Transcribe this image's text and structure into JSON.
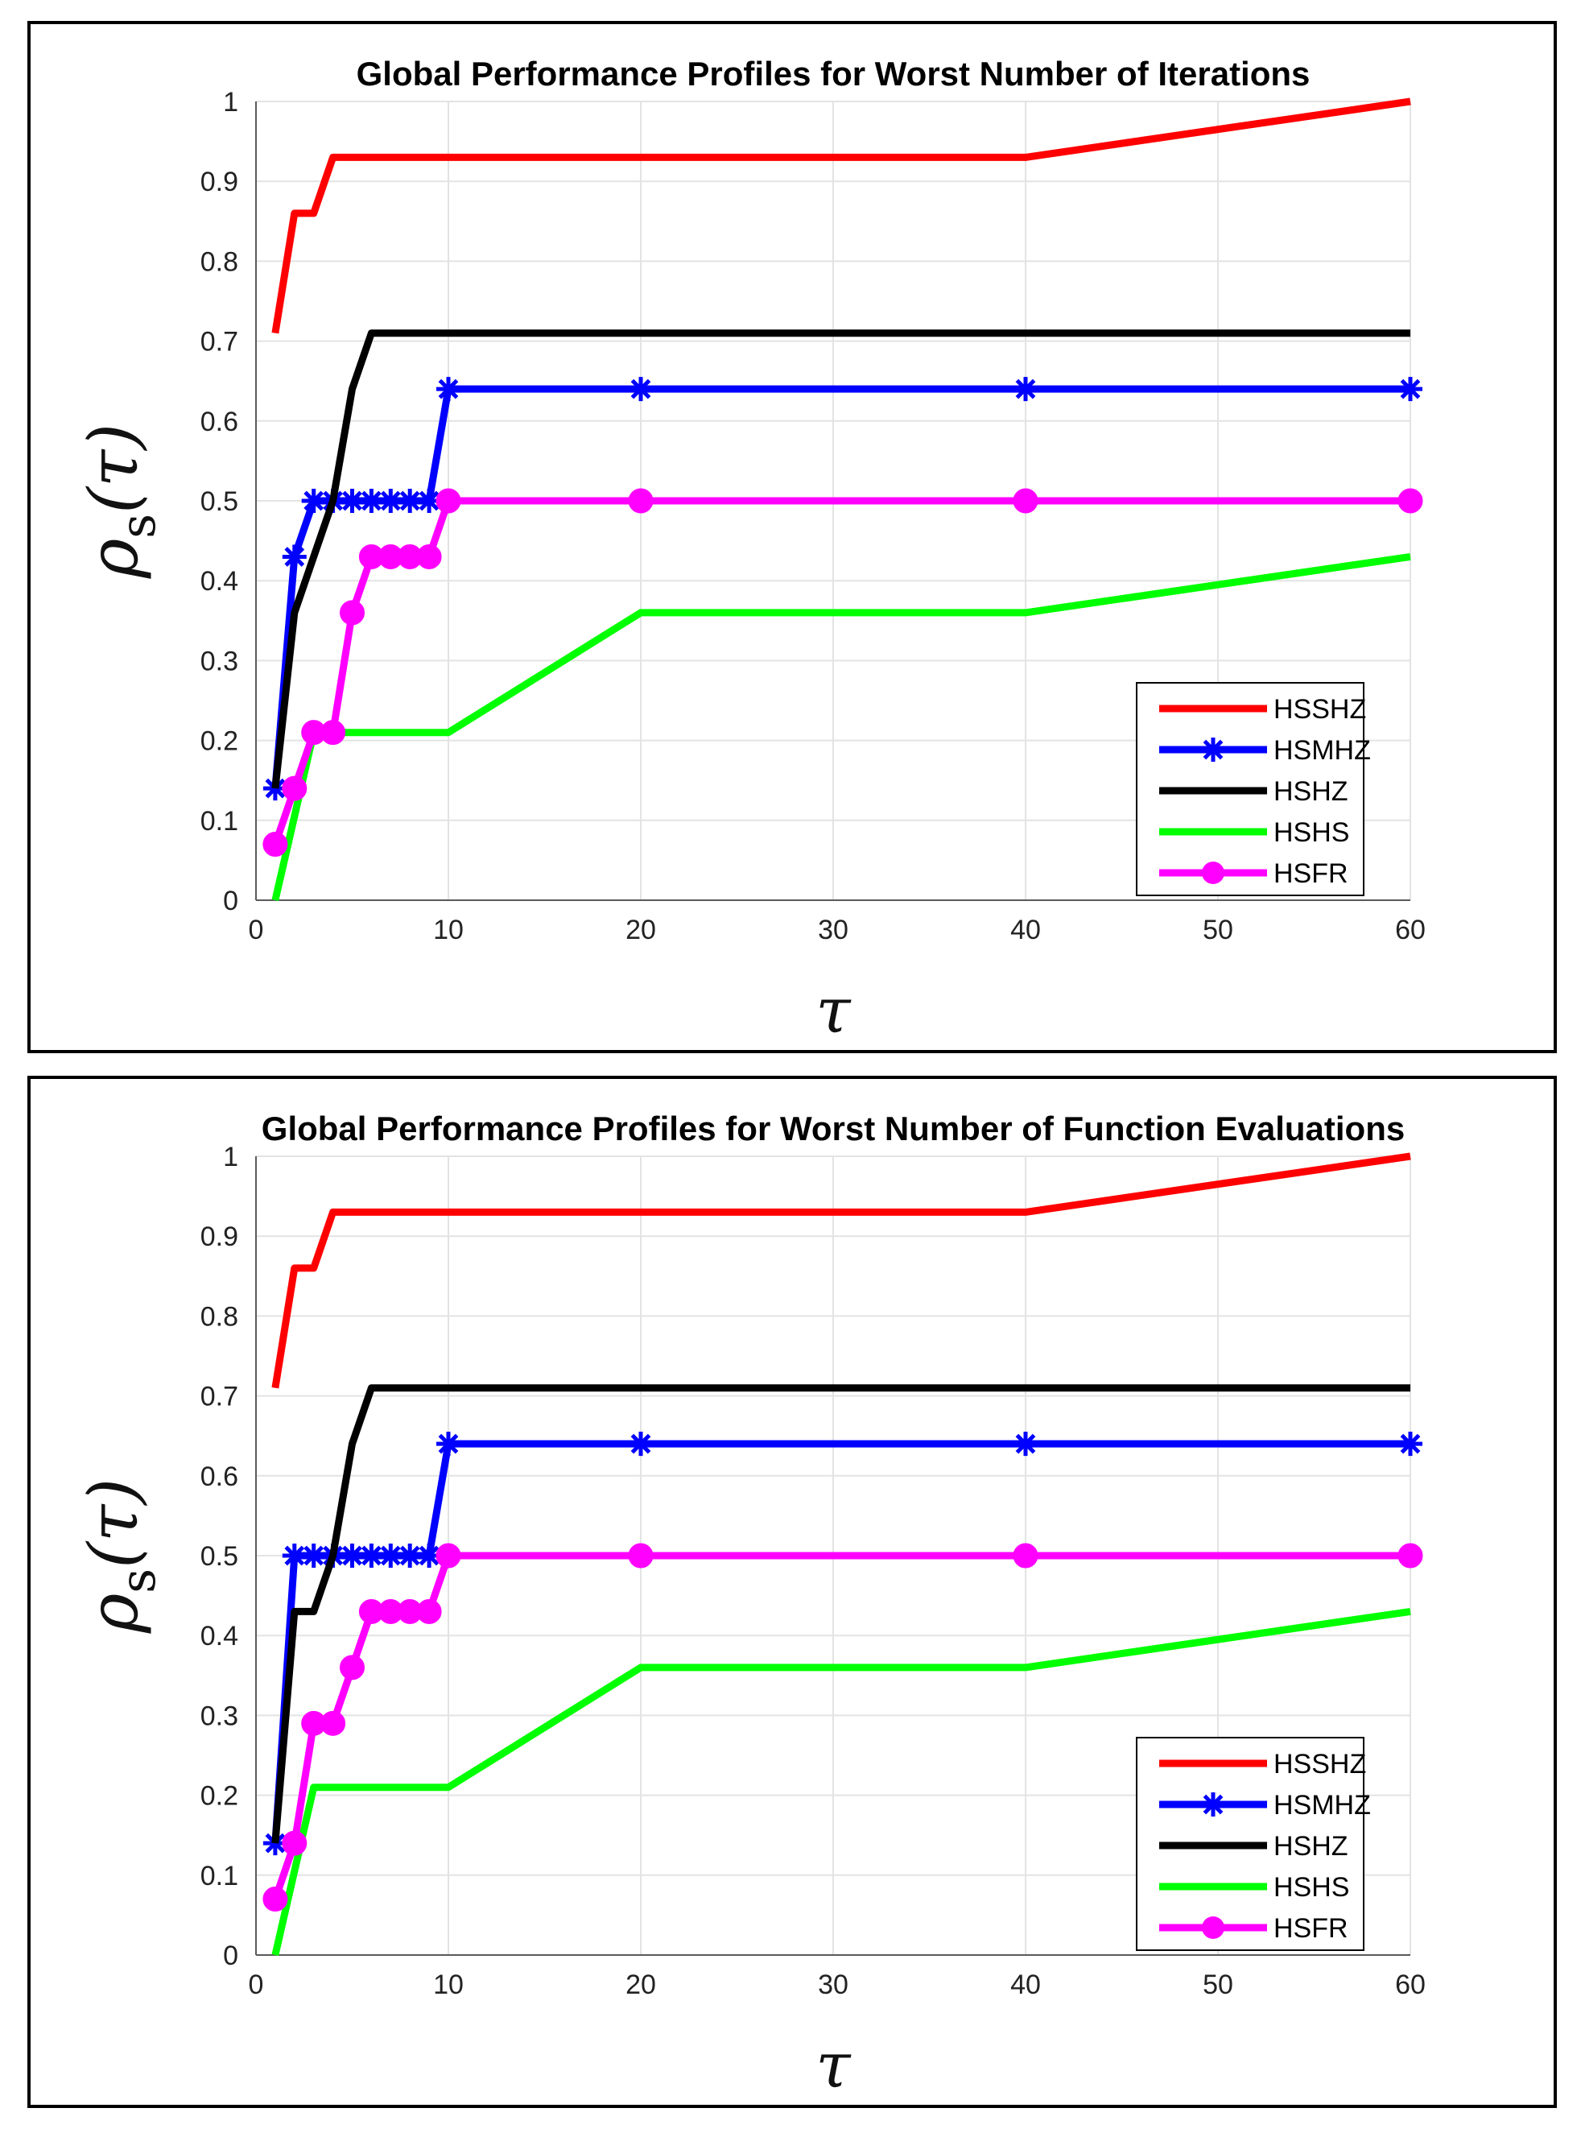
{
  "chart_data": [
    {
      "type": "line",
      "title": "Global Performance Profiles for Worst Number of Iterations",
      "xlabel": "τ",
      "ylabel": "ρ",
      "ylabel_subscript": "s",
      "ylabel_arg": "(τ)",
      "xlim": [
        0,
        60
      ],
      "ylim": [
        0,
        1
      ],
      "xticks": [
        0,
        10,
        20,
        30,
        40,
        50,
        60
      ],
      "yticks": [
        0,
        0.1,
        0.2,
        0.3,
        0.4,
        0.5,
        0.6,
        0.7,
        0.8,
        0.9,
        1
      ],
      "grid": true,
      "legend_position": "bottom-right",
      "series": [
        {
          "name": "HSSHZ",
          "color": "#ff0000",
          "marker": "none",
          "x": [
            1,
            2,
            3,
            4,
            10,
            20,
            40,
            60
          ],
          "y": [
            0.71,
            0.86,
            0.86,
            0.93,
            0.93,
            0.93,
            0.93,
            1.0
          ]
        },
        {
          "name": "HSMHZ",
          "color": "#0000ff",
          "marker": "asterisk",
          "x": [
            1,
            2,
            3,
            4,
            5,
            6,
            7,
            8,
            9,
            10,
            20,
            40,
            60
          ],
          "y": [
            0.14,
            0.43,
            0.5,
            0.5,
            0.5,
            0.5,
            0.5,
            0.5,
            0.5,
            0.64,
            0.64,
            0.64,
            0.64
          ]
        },
        {
          "name": "HSHZ",
          "color": "#000000",
          "marker": "none",
          "x": [
            1,
            2,
            4,
            5,
            6,
            10,
            20,
            40,
            60
          ],
          "y": [
            0.14,
            0.36,
            0.5,
            0.64,
            0.71,
            0.71,
            0.71,
            0.71,
            0.71
          ]
        },
        {
          "name": "HSHS",
          "color": "#00ff00",
          "marker": "none",
          "x": [
            1,
            3,
            4,
            10,
            20,
            40,
            60
          ],
          "y": [
            0.0,
            0.21,
            0.21,
            0.21,
            0.36,
            0.36,
            0.43
          ]
        },
        {
          "name": "HSFR",
          "color": "#ff00ff",
          "marker": "circle",
          "x": [
            1,
            2,
            3,
            4,
            5,
            6,
            7,
            8,
            9,
            10,
            20,
            40,
            60
          ],
          "y": [
            0.07,
            0.14,
            0.21,
            0.21,
            0.36,
            0.43,
            0.43,
            0.43,
            0.43,
            0.5,
            0.5,
            0.5,
            0.5
          ]
        }
      ]
    },
    {
      "type": "line",
      "title": "Global Performance Profiles for Worst Number of Function Evaluations",
      "xlabel": "τ",
      "ylabel": "ρ",
      "ylabel_subscript": "s",
      "ylabel_arg": "(τ)",
      "xlim": [
        0,
        60
      ],
      "ylim": [
        0,
        1
      ],
      "xticks": [
        0,
        10,
        20,
        30,
        40,
        50,
        60
      ],
      "yticks": [
        0,
        0.1,
        0.2,
        0.3,
        0.4,
        0.5,
        0.6,
        0.7,
        0.8,
        0.9,
        1
      ],
      "grid": true,
      "legend_position": "bottom-right",
      "series": [
        {
          "name": "HSSHZ",
          "color": "#ff0000",
          "marker": "none",
          "x": [
            1,
            2,
            3,
            4,
            10,
            20,
            40,
            60
          ],
          "y": [
            0.71,
            0.86,
            0.86,
            0.93,
            0.93,
            0.93,
            0.93,
            1.0
          ]
        },
        {
          "name": "HSMHZ",
          "color": "#0000ff",
          "marker": "asterisk",
          "x": [
            1,
            2,
            3,
            4,
            5,
            6,
            7,
            8,
            9,
            10,
            20,
            40,
            60
          ],
          "y": [
            0.14,
            0.5,
            0.5,
            0.5,
            0.5,
            0.5,
            0.5,
            0.5,
            0.5,
            0.64,
            0.64,
            0.64,
            0.64
          ]
        },
        {
          "name": "HSHZ",
          "color": "#000000",
          "marker": "none",
          "x": [
            1,
            2,
            3,
            4,
            5,
            6,
            10,
            20,
            40,
            60
          ],
          "y": [
            0.14,
            0.43,
            0.43,
            0.5,
            0.64,
            0.71,
            0.71,
            0.71,
            0.71,
            0.71
          ]
        },
        {
          "name": "HSHS",
          "color": "#00ff00",
          "marker": "none",
          "x": [
            1,
            3,
            4,
            10,
            20,
            40,
            60
          ],
          "y": [
            0.0,
            0.21,
            0.21,
            0.21,
            0.36,
            0.36,
            0.43
          ]
        },
        {
          "name": "HSFR",
          "color": "#ff00ff",
          "marker": "circle",
          "x": [
            1,
            2,
            3,
            4,
            5,
            6,
            7,
            8,
            9,
            10,
            20,
            40,
            60
          ],
          "y": [
            0.07,
            0.14,
            0.29,
            0.29,
            0.36,
            0.43,
            0.43,
            0.43,
            0.43,
            0.5,
            0.5,
            0.5,
            0.5
          ]
        }
      ]
    }
  ]
}
